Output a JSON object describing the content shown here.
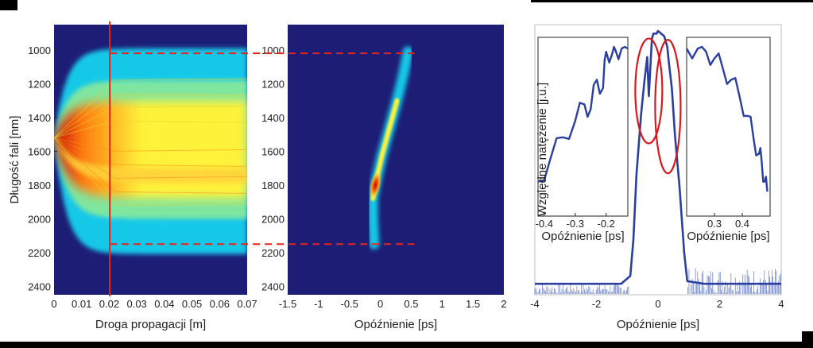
{
  "chart_data": [
    {
      "type": "heatmap",
      "xlabel": "Droga propagacji [m]",
      "ylabel": "Długość fali [nm]",
      "xlim": [
        0,
        0.07
      ],
      "ylim": [
        2450,
        850
      ],
      "xticks": [
        "0",
        "0.01",
        "0.02",
        "0.03",
        "0.04",
        "0.05",
        "0.06",
        "0.07"
      ],
      "xtick_values": [
        0,
        0.01,
        0.02,
        0.03,
        0.04,
        0.05,
        0.06,
        0.07
      ],
      "yticks": [
        "1000",
        "1200",
        "1400",
        "1600",
        "1800",
        "2000",
        "2200",
        "2400"
      ],
      "ytick_values": [
        1000,
        1200,
        1400,
        1600,
        1800,
        2000,
        2200,
        2400
      ],
      "marker_distance": 0.0202,
      "spectrum_edges": [
        1020,
        2150
      ],
      "colormap": [
        "#1d1d75",
        "#19c8e8",
        "#fff23a",
        "#ff7d10",
        "#c40000"
      ]
    },
    {
      "type": "heatmap",
      "xlabel": "Opóźnienie [ps]",
      "xlim": [
        -1.5,
        2
      ],
      "ylim": [
        2450,
        850
      ],
      "xticks": [
        "-1.5",
        "-1",
        "-0.5",
        "0",
        "0.5",
        "1",
        "1.5",
        "2"
      ],
      "xtick_values": [
        -1.5,
        -1,
        -0.5,
        0,
        0.5,
        1,
        1.5,
        2
      ],
      "yticks": [
        "1000",
        "1200",
        "1400",
        "1600",
        "1800",
        "2000",
        "2200",
        "2400"
      ],
      "ytick_values": [
        1000,
        1200,
        1400,
        1600,
        1800,
        2000,
        2200,
        2400
      ],
      "trace": [
        {
          "x": 0.45,
          "y": 1010
        },
        {
          "x": 0.37,
          "y": 1150
        },
        {
          "x": 0.27,
          "y": 1300
        },
        {
          "x": 0.15,
          "y": 1460
        },
        {
          "x": 0.03,
          "y": 1620
        },
        {
          "x": -0.07,
          "y": 1780
        },
        {
          "x": -0.12,
          "y": 1880
        },
        {
          "x": -0.12,
          "y": 2000
        },
        {
          "x": -0.1,
          "y": 2150
        }
      ],
      "hot_spot": {
        "x": -0.08,
        "y": 1800
      }
    },
    {
      "type": "line",
      "xlabel": "Opóźnienie [ps]",
      "ylabel": "Względne natężenie [j.u.]",
      "xlim": [
        -4,
        4
      ],
      "xticks": [
        "-4",
        "-2",
        "0",
        "2",
        "4"
      ],
      "xtick_values": [
        -4,
        -2,
        0,
        2,
        4
      ],
      "series_color": "#2a3f9e",
      "main": {
        "x": [
          -4,
          -3,
          -2,
          -1.2,
          -0.9,
          -0.8,
          -0.7,
          -0.55,
          -0.45,
          -0.35,
          -0.3,
          -0.2,
          -0.15,
          -0.05,
          0,
          0.1,
          0.2,
          0.3,
          0.35,
          0.45,
          0.55,
          0.7,
          0.85,
          0.95,
          1.5,
          4
        ],
        "y": [
          0.03,
          0.03,
          0.03,
          0.03,
          0.06,
          0.2,
          0.45,
          0.68,
          0.8,
          0.9,
          0.75,
          0.97,
          0.99,
          0.99,
          1.0,
          0.99,
          0.98,
          0.94,
          0.88,
          0.78,
          0.6,
          0.4,
          0.15,
          0.04,
          0.03,
          0.03
        ]
      },
      "noise_level_left": 0.04,
      "noise_level_right": 0.1,
      "ellipses": [
        {
          "cx": -0.3,
          "cy": 0.77
        },
        {
          "cx": 0.32,
          "cy": 0.71
        }
      ],
      "ellipse_color": "#d8191c",
      "insets": [
        {
          "xlabel": "Opóźnienie [ps]",
          "xlim": [
            -0.42,
            -0.13
          ],
          "xticks": [
            "-0.4",
            "-0.3",
            "-0.2"
          ],
          "xtick_values": [
            -0.4,
            -0.3,
            -0.2
          ],
          "x": [
            -0.42,
            -0.38,
            -0.34,
            -0.3,
            -0.27,
            -0.25,
            -0.23,
            -0.21,
            -0.2,
            -0.18,
            -0.17,
            -0.15,
            -0.13
          ],
          "y": [
            0.18,
            0.32,
            0.45,
            0.55,
            0.65,
            0.62,
            0.8,
            0.75,
            0.97,
            0.96,
            0.98,
            0.99,
            0.99
          ]
        },
        {
          "xlabel": "Opóźnienie [ps]",
          "xlim": [
            0.2,
            0.5
          ],
          "xticks": [
            "0.3",
            "0.4"
          ],
          "xtick_values": [
            0.3,
            0.4
          ],
          "x": [
            0.2,
            0.24,
            0.27,
            0.3,
            0.33,
            0.36,
            0.39,
            0.42,
            0.44,
            0.46,
            0.47,
            0.48,
            0.49
          ],
          "y": [
            0.99,
            0.99,
            0.97,
            0.93,
            0.87,
            0.8,
            0.7,
            0.58,
            0.45,
            0.35,
            0.3,
            0.18,
            0.12
          ]
        }
      ]
    }
  ]
}
